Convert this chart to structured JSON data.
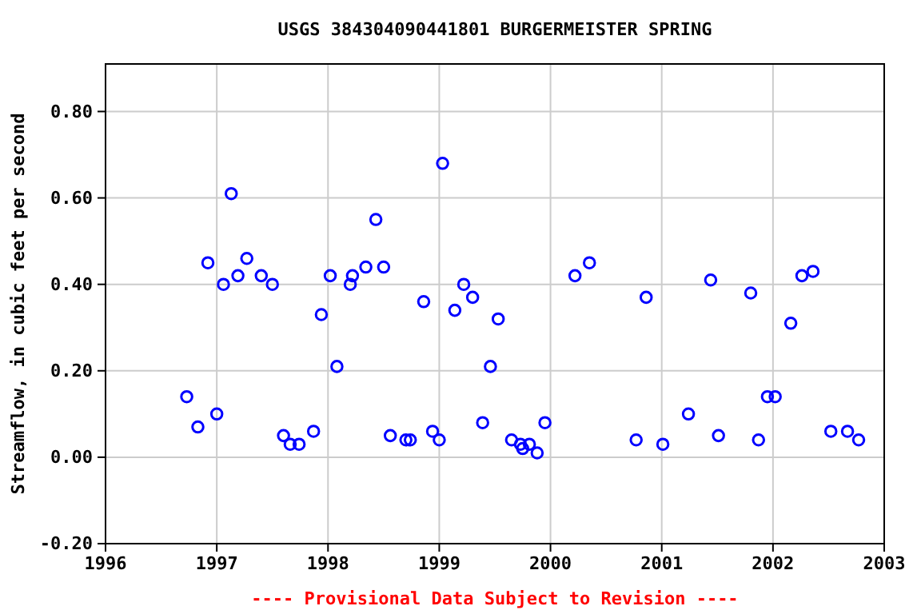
{
  "chart_data": {
    "type": "scatter",
    "title": "USGS 384304090441801 BURGERMEISTER SPRING",
    "ylabel": "Streamflow, in cubic feet per second",
    "annotations": [
      "---- Provisional Data Subject to Revision ----"
    ],
    "x": [
      1996.73,
      1996.83,
      1996.92,
      1997.0,
      1997.06,
      1997.13,
      1997.19,
      1997.27,
      1997.4,
      1997.5,
      1997.6,
      1997.66,
      1997.74,
      1997.87,
      1997.94,
      1998.02,
      1998.08,
      1998.2,
      1998.22,
      1998.34,
      1998.43,
      1998.5,
      1998.56,
      1998.7,
      1998.74,
      1998.86,
      1998.94,
      1999.0,
      1999.03,
      1999.14,
      1999.22,
      1999.3,
      1999.39,
      1999.46,
      1999.53,
      1999.65,
      1999.73,
      1999.75,
      1999.81,
      1999.88,
      1999.95,
      2000.22,
      2000.35,
      2000.77,
      2000.86,
      2001.01,
      2001.24,
      2001.44,
      2001.51,
      2001.8,
      2001.87,
      2001.95,
      2002.02,
      2002.16,
      2002.26,
      2002.36,
      2002.52,
      2002.67,
      2002.77
    ],
    "series": [
      {
        "color": "#0000ff",
        "values": [
          0.14,
          0.07,
          0.45,
          0.1,
          0.4,
          0.61,
          0.42,
          0.46,
          0.42,
          0.4,
          0.05,
          0.03,
          0.03,
          0.06,
          0.33,
          0.42,
          0.21,
          0.4,
          0.42,
          0.44,
          0.55,
          0.44,
          0.05,
          0.04,
          0.04,
          0.36,
          0.06,
          0.04,
          0.68,
          0.34,
          0.4,
          0.37,
          0.08,
          0.21,
          0.32,
          0.04,
          0.03,
          0.02,
          0.03,
          0.01,
          0.08,
          0.42,
          0.45,
          0.04,
          0.37,
          0.03,
          0.1,
          0.41,
          0.05,
          0.38,
          0.04,
          0.14,
          0.14,
          0.31,
          0.42,
          0.43,
          0.06,
          0.06,
          0.04
        ]
      }
    ],
    "xlim": [
      1996,
      2003
    ],
    "xticks": [
      1996,
      1997,
      1998,
      1999,
      2000,
      2001,
      2002,
      2003
    ],
    "ylim": [
      -0.2,
      0.91
    ],
    "yticks": [
      {
        "value": -0.2,
        "label": "-0.20"
      },
      {
        "value": 0,
        "label": "0.00"
      },
      {
        "value": 0.2,
        "label": "0.20"
      },
      {
        "value": 0.4,
        "label": "0.40"
      },
      {
        "value": 0.6,
        "label": "0.60"
      },
      {
        "value": 0.8,
        "label": "0.80"
      }
    ],
    "grid": true,
    "marker": "circle"
  }
}
